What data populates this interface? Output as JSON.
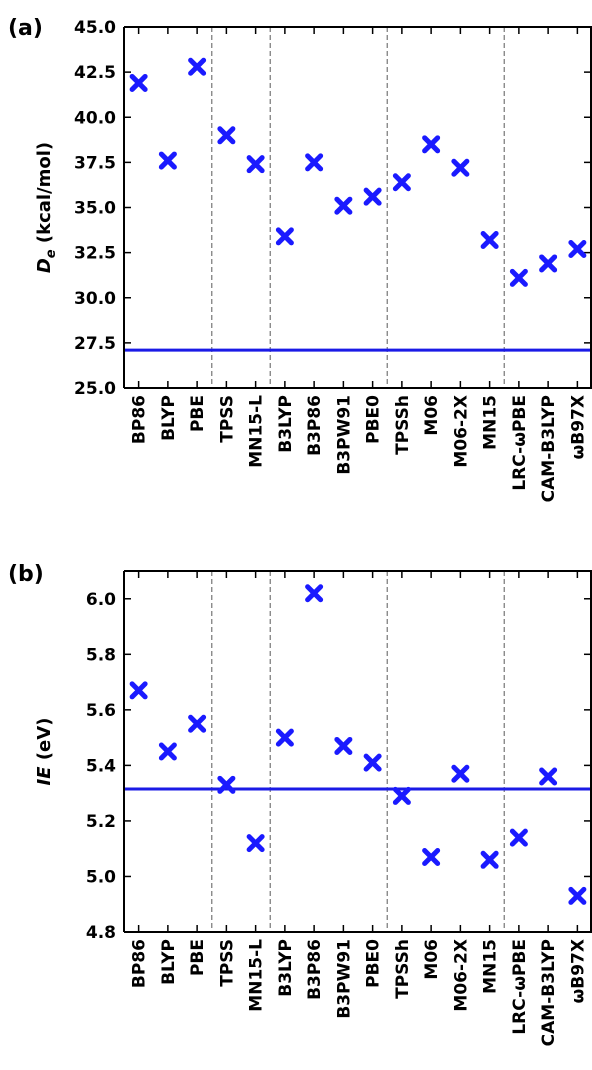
{
  "chart_data": [
    {
      "type": "scatter",
      "panel_label": "(a)",
      "ylabel_symbol": "D",
      "ylabel_subscript": "e",
      "ylabel_unit": "(kcal/mol)",
      "ylim": [
        25.0,
        45.0
      ],
      "yticks": [
        "25.0",
        "27.5",
        "30.0",
        "32.5",
        "35.0",
        "37.5",
        "40.0",
        "42.5",
        "45.0"
      ],
      "categories": [
        "BP86",
        "BLYP",
        "PBE",
        "TPSS",
        "MN15-L",
        "B3LYP",
        "B3P86",
        "B3PW91",
        "PBE0",
        "TPSSh",
        "M06",
        "M06-2X",
        "MN15",
        "LRC-ωPBE",
        "CAM-B3LYP",
        "ωB97X"
      ],
      "values": [
        41.9,
        37.6,
        42.8,
        39.0,
        37.4,
        33.4,
        37.5,
        35.1,
        35.6,
        36.4,
        38.5,
        37.2,
        33.2,
        31.1,
        31.9,
        32.7
      ],
      "reference_line": 27.1,
      "group_dividers_after_index": [
        2,
        4,
        8,
        12
      ],
      "marker": "X",
      "marker_color": "#1a1aff",
      "line_color": "#1a1ae6",
      "divider_color": "#808080"
    },
    {
      "type": "scatter",
      "panel_label": "(b)",
      "ylabel_symbol": "IE",
      "ylabel_unit": "(eV)",
      "ylim": [
        4.8,
        6.1
      ],
      "yticks": [
        "4.8",
        "5.0",
        "5.2",
        "5.4",
        "5.6",
        "5.8",
        "6.0"
      ],
      "categories": [
        "BP86",
        "BLYP",
        "PBE",
        "TPSS",
        "MN15-L",
        "B3LYP",
        "B3P86",
        "B3PW91",
        "PBE0",
        "TPSSh",
        "M06",
        "M06-2X",
        "MN15",
        "LRC-ωPBE",
        "CAM-B3LYP",
        "ωB97X"
      ],
      "values": [
        5.67,
        5.45,
        5.55,
        5.33,
        5.12,
        5.5,
        6.02,
        5.47,
        5.41,
        5.29,
        5.07,
        5.37,
        5.06,
        5.14,
        5.36,
        4.93
      ],
      "reference_line": 5.315,
      "group_dividers_after_index": [
        2,
        4,
        8,
        12
      ],
      "marker": "X",
      "marker_color": "#1a1aff",
      "line_color": "#1a1ae6",
      "divider_color": "#808080"
    }
  ]
}
